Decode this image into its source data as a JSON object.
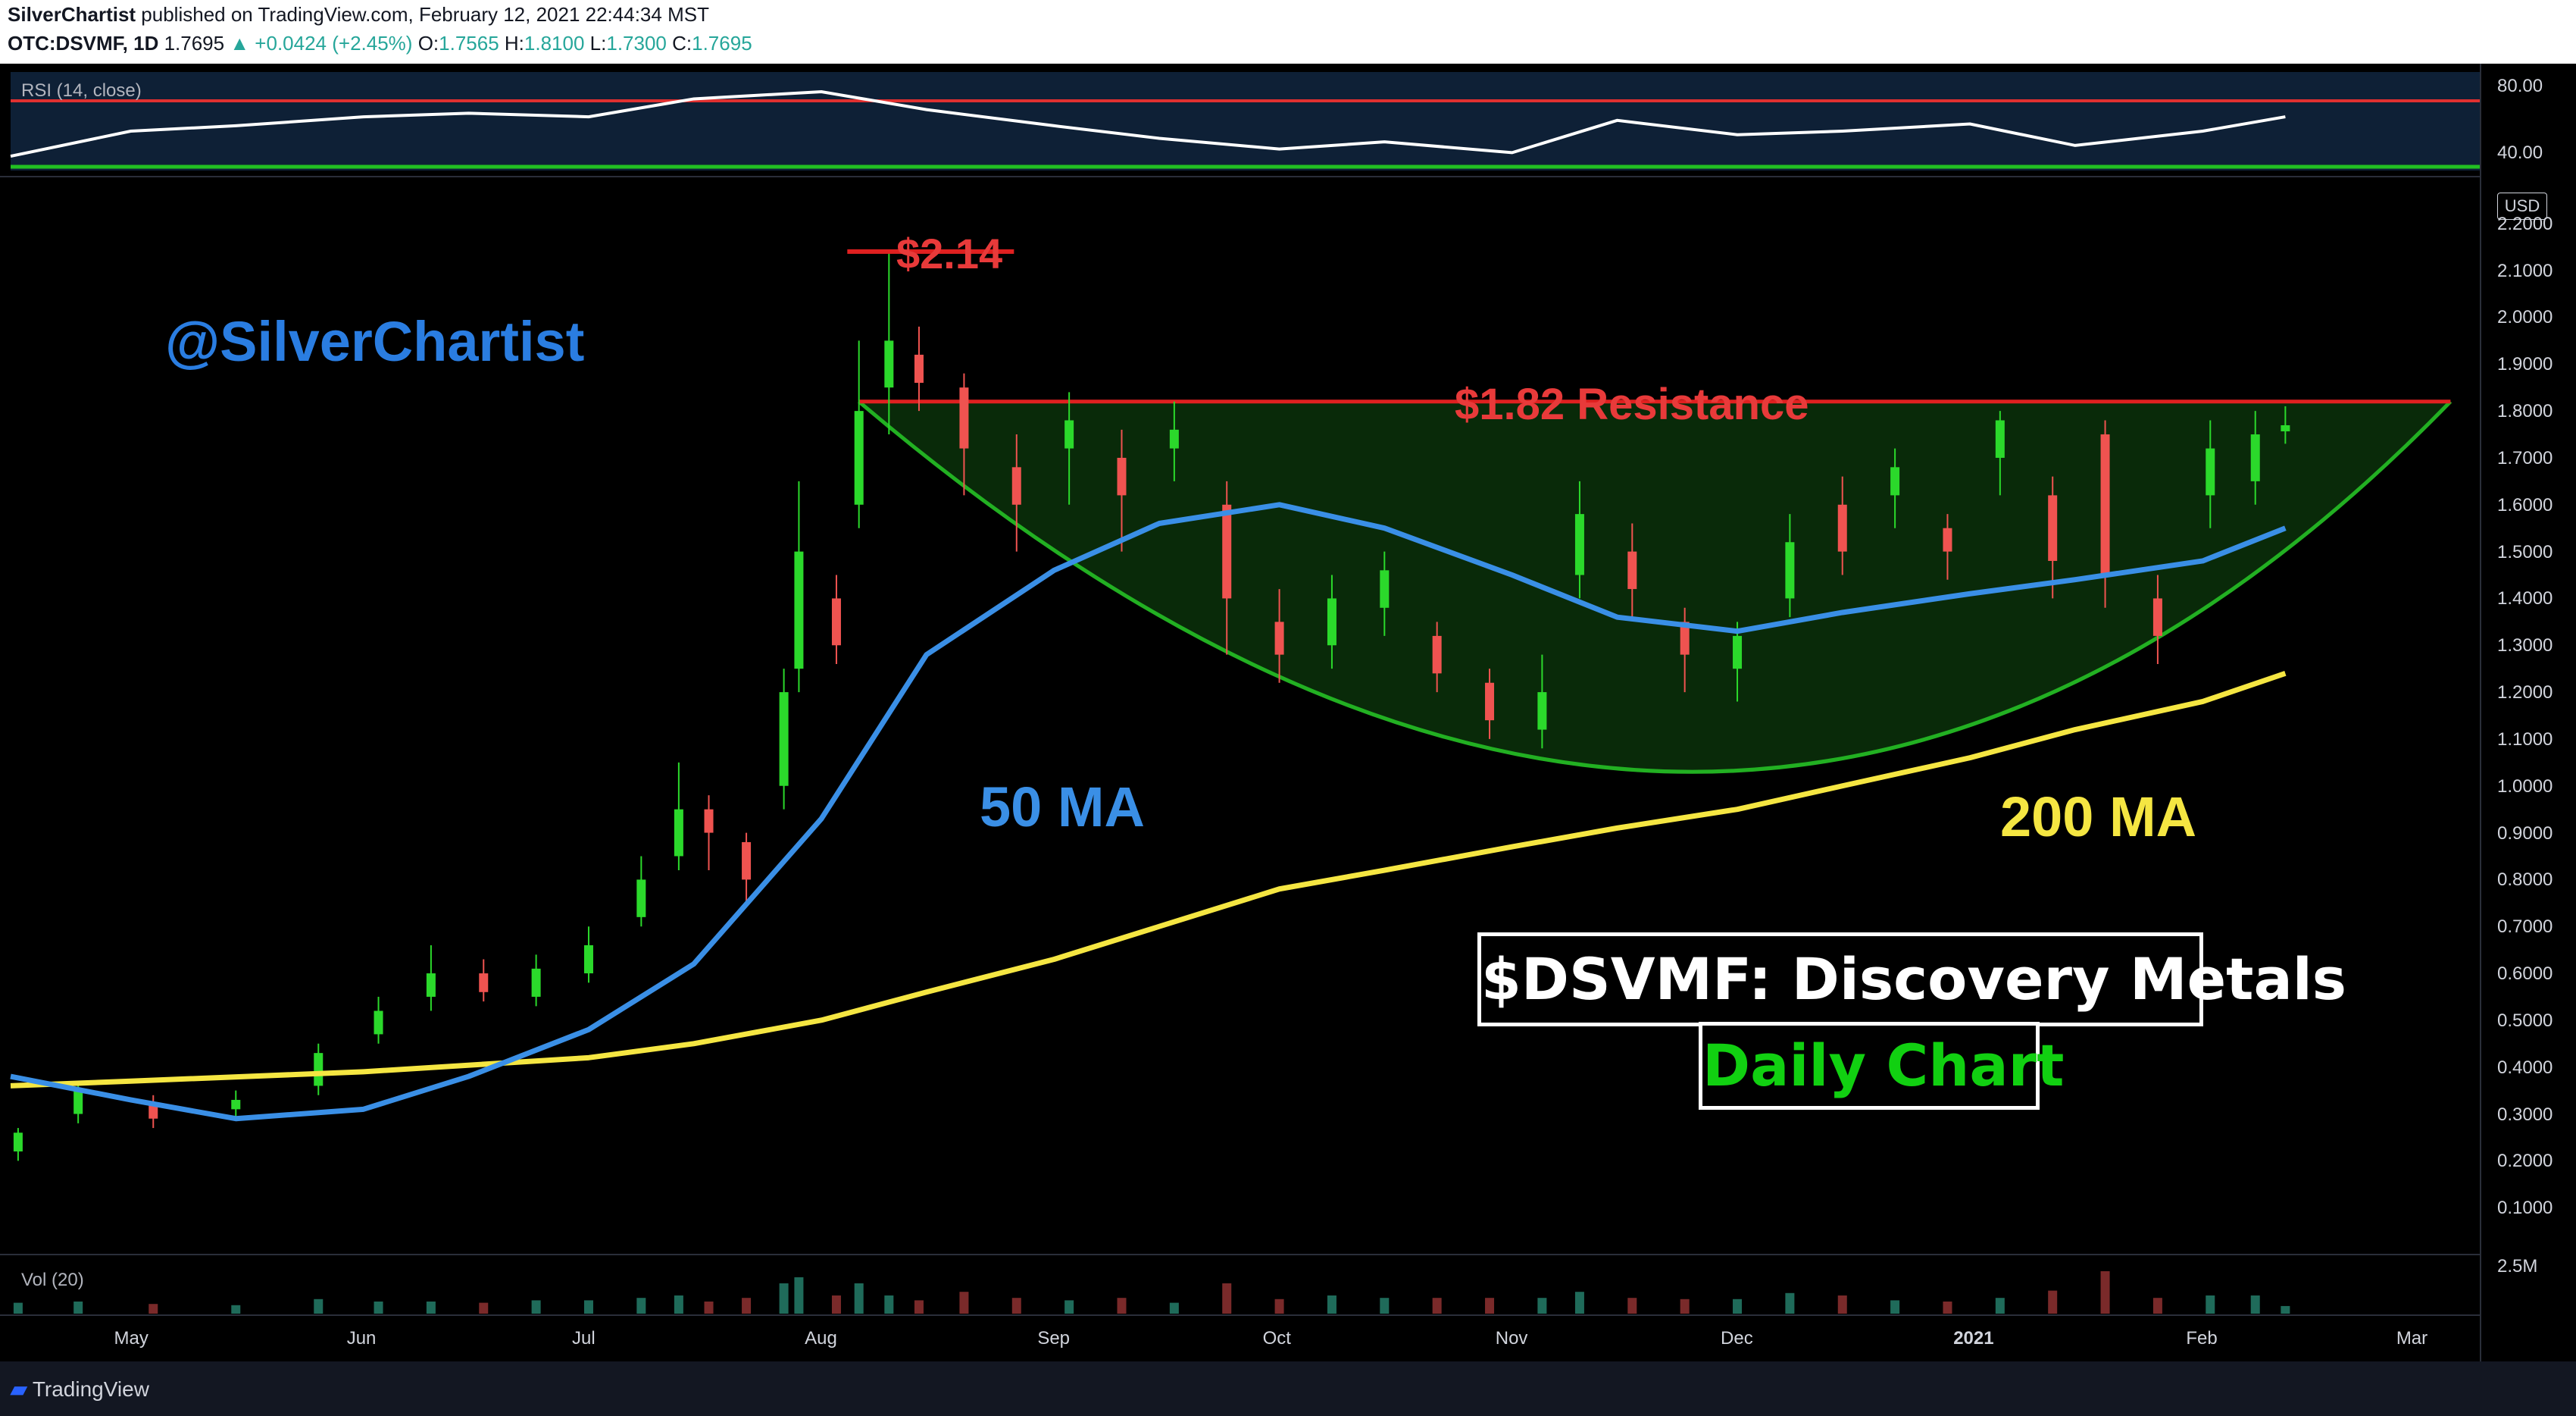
{
  "header": {
    "author": "SilverChartist",
    "published": " published on TradingView.com, February 12, 2021 22:44:34 MST",
    "symbol": "OTC:DSVMF, 1D",
    "last": "1.7695",
    "change": "▲ +0.0424 (+2.45%)",
    "o_label": "O:",
    "o_val": "1.7565",
    "h_label": "H:",
    "h_val": "1.8100",
    "l_label": "L:",
    "l_val": "1.7300",
    "c_label": "C:",
    "c_val": "1.7695"
  },
  "rsi_label": "RSI (14, close)",
  "rsi_ticks": [
    "80.00",
    "40.00"
  ],
  "vol_label": "Vol (20)",
  "vol_tick": "2.5M",
  "currency": "USD",
  "footer": {
    "brand": "TradingView"
  },
  "annotations": {
    "handle": "@SilverChartist",
    "peak": "$2.14",
    "resistance": "$1.82 Resistance",
    "ma50": "50 MA",
    "ma200": "200 MA",
    "title": "$DSVMF: Discovery Metals",
    "subtitle": "Daily Chart"
  },
  "colors": {
    "up": "#26a69a",
    "down": "#ef5350",
    "green_candle": "#2bd92b",
    "ma50": "#3a8fe6",
    "ma200": "#f5e642",
    "resistance": "#e02020",
    "cup": "#22b022",
    "handle_text": "#2a7de1"
  },
  "chart_data": {
    "type": "line",
    "ylim": [
      0.0,
      2.3
    ],
    "y_ticks": [
      "2.2000",
      "2.1000",
      "2.0000",
      "1.9000",
      "1.8000",
      "1.7000",
      "1.6000",
      "1.5000",
      "1.4000",
      "1.3000",
      "1.2000",
      "1.1000",
      "1.0000",
      "0.9000",
      "0.8000",
      "0.7000",
      "0.6000",
      "0.5000",
      "0.4000",
      "0.3000",
      "0.2000",
      "0.1000"
    ],
    "x_ticks": [
      "May",
      "Jun",
      "Jul",
      "Aug",
      "Sep",
      "Oct",
      "Nov",
      "Dec",
      "2021",
      "Feb",
      "Mar"
    ],
    "x_range": [
      "2020-04-15",
      "2021-03-10"
    ],
    "x_tick_dates": [
      "2020-05-01",
      "2020-06-01",
      "2020-07-01",
      "2020-08-01",
      "2020-09-01",
      "2020-10-01",
      "2020-11-01",
      "2020-12-01",
      "2021-01-01",
      "2021-02-01",
      "2021-03-01"
    ],
    "series": [
      {
        "name": "50 MA",
        "x": [
          "2020-04-15",
          "2020-05-01",
          "2020-05-15",
          "2020-06-01",
          "2020-06-15",
          "2020-07-01",
          "2020-07-15",
          "2020-08-01",
          "2020-08-15",
          "2020-09-01",
          "2020-09-15",
          "2020-10-01",
          "2020-10-15",
          "2020-11-01",
          "2020-11-15",
          "2020-12-01",
          "2020-12-15",
          "2021-01-01",
          "2021-01-15",
          "2021-02-01",
          "2021-02-12"
        ],
        "values": [
          0.38,
          0.33,
          0.29,
          0.31,
          0.38,
          0.48,
          0.62,
          0.93,
          1.28,
          1.46,
          1.56,
          1.6,
          1.55,
          1.45,
          1.36,
          1.33,
          1.37,
          1.41,
          1.44,
          1.48,
          1.55
        ]
      },
      {
        "name": "200 MA",
        "x": [
          "2020-04-15",
          "2020-05-01",
          "2020-06-01",
          "2020-07-01",
          "2020-07-15",
          "2020-08-01",
          "2020-08-15",
          "2020-09-01",
          "2020-09-15",
          "2020-10-01",
          "2020-10-15",
          "2020-11-01",
          "2020-11-15",
          "2020-12-01",
          "2020-12-15",
          "2021-01-01",
          "2021-01-15",
          "2021-02-01",
          "2021-02-12"
        ],
        "values": [
          0.36,
          0.37,
          0.39,
          0.42,
          0.45,
          0.5,
          0.56,
          0.63,
          0.7,
          0.78,
          0.82,
          0.87,
          0.91,
          0.95,
          1.0,
          1.06,
          1.12,
          1.18,
          1.24
        ]
      },
      {
        "name": "RSI",
        "x": [
          "2020-04-15",
          "2020-05-01",
          "2020-05-15",
          "2020-06-01",
          "2020-06-15",
          "2020-07-01",
          "2020-07-15",
          "2020-08-01",
          "2020-08-15",
          "2020-09-01",
          "2020-09-15",
          "2020-10-01",
          "2020-10-15",
          "2020-11-01",
          "2020-11-15",
          "2020-12-01",
          "2020-12-15",
          "2021-01-01",
          "2021-01-15",
          "2021-02-01",
          "2021-02-12"
        ],
        "values": [
          38,
          52,
          55,
          60,
          62,
          60,
          70,
          74,
          64,
          55,
          48,
          42,
          46,
          40,
          58,
          50,
          52,
          56,
          44,
          52,
          60
        ]
      }
    ],
    "candles": [
      {
        "d": "2020-04-16",
        "o": 0.22,
        "c": 0.26,
        "h": 0.27,
        "l": 0.2
      },
      {
        "d": "2020-04-24",
        "o": 0.3,
        "c": 0.35,
        "h": 0.37,
        "l": 0.28
      },
      {
        "d": "2020-05-04",
        "o": 0.32,
        "c": 0.29,
        "h": 0.34,
        "l": 0.27
      },
      {
        "d": "2020-05-15",
        "o": 0.31,
        "c": 0.33,
        "h": 0.35,
        "l": 0.29
      },
      {
        "d": "2020-05-26",
        "o": 0.36,
        "c": 0.43,
        "h": 0.45,
        "l": 0.34
      },
      {
        "d": "2020-06-03",
        "o": 0.47,
        "c": 0.52,
        "h": 0.55,
        "l": 0.45
      },
      {
        "d": "2020-06-10",
        "o": 0.55,
        "c": 0.6,
        "h": 0.66,
        "l": 0.52
      },
      {
        "d": "2020-06-17",
        "o": 0.6,
        "c": 0.56,
        "h": 0.63,
        "l": 0.54
      },
      {
        "d": "2020-06-24",
        "o": 0.55,
        "c": 0.61,
        "h": 0.64,
        "l": 0.53
      },
      {
        "d": "2020-07-01",
        "o": 0.6,
        "c": 0.66,
        "h": 0.7,
        "l": 0.58
      },
      {
        "d": "2020-07-08",
        "o": 0.72,
        "c": 0.8,
        "h": 0.85,
        "l": 0.7
      },
      {
        "d": "2020-07-13",
        "o": 0.85,
        "c": 0.95,
        "h": 1.05,
        "l": 0.82
      },
      {
        "d": "2020-07-17",
        "o": 0.95,
        "c": 0.9,
        "h": 0.98,
        "l": 0.82
      },
      {
        "d": "2020-07-22",
        "o": 0.88,
        "c": 0.8,
        "h": 0.9,
        "l": 0.75
      },
      {
        "d": "2020-07-27",
        "o": 1.0,
        "c": 1.2,
        "h": 1.25,
        "l": 0.95
      },
      {
        "d": "2020-07-29",
        "o": 1.25,
        "c": 1.5,
        "h": 1.65,
        "l": 1.2
      },
      {
        "d": "2020-08-03",
        "o": 1.4,
        "c": 1.3,
        "h": 1.45,
        "l": 1.26
      },
      {
        "d": "2020-08-06",
        "o": 1.6,
        "c": 1.8,
        "h": 1.95,
        "l": 1.55
      },
      {
        "d": "2020-08-10",
        "o": 1.85,
        "c": 1.95,
        "h": 2.14,
        "l": 1.75
      },
      {
        "d": "2020-08-14",
        "o": 1.92,
        "c": 1.86,
        "h": 1.98,
        "l": 1.8
      },
      {
        "d": "2020-08-20",
        "o": 1.85,
        "c": 1.72,
        "h": 1.88,
        "l": 1.62
      },
      {
        "d": "2020-08-27",
        "o": 1.68,
        "c": 1.6,
        "h": 1.75,
        "l": 1.5
      },
      {
        "d": "2020-09-03",
        "o": 1.72,
        "c": 1.78,
        "h": 1.84,
        "l": 1.6
      },
      {
        "d": "2020-09-10",
        "o": 1.7,
        "c": 1.62,
        "h": 1.76,
        "l": 1.5
      },
      {
        "d": "2020-09-17",
        "o": 1.72,
        "c": 1.76,
        "h": 1.82,
        "l": 1.65
      },
      {
        "d": "2020-09-24",
        "o": 1.6,
        "c": 1.4,
        "h": 1.65,
        "l": 1.28
      },
      {
        "d": "2020-10-01",
        "o": 1.35,
        "c": 1.28,
        "h": 1.42,
        "l": 1.22
      },
      {
        "d": "2020-10-08",
        "o": 1.3,
        "c": 1.4,
        "h": 1.45,
        "l": 1.25
      },
      {
        "d": "2020-10-15",
        "o": 1.38,
        "c": 1.46,
        "h": 1.5,
        "l": 1.32
      },
      {
        "d": "2020-10-22",
        "o": 1.32,
        "c": 1.24,
        "h": 1.35,
        "l": 1.2
      },
      {
        "d": "2020-10-29",
        "o": 1.22,
        "c": 1.14,
        "h": 1.25,
        "l": 1.1
      },
      {
        "d": "2020-11-05",
        "o": 1.12,
        "c": 1.2,
        "h": 1.28,
        "l": 1.08
      },
      {
        "d": "2020-11-10",
        "o": 1.45,
        "c": 1.58,
        "h": 1.65,
        "l": 1.4
      },
      {
        "d": "2020-11-17",
        "o": 1.5,
        "c": 1.42,
        "h": 1.56,
        "l": 1.36
      },
      {
        "d": "2020-11-24",
        "o": 1.35,
        "c": 1.28,
        "h": 1.38,
        "l": 1.2
      },
      {
        "d": "2020-12-01",
        "o": 1.25,
        "c": 1.32,
        "h": 1.35,
        "l": 1.18
      },
      {
        "d": "2020-12-08",
        "o": 1.4,
        "c": 1.52,
        "h": 1.58,
        "l": 1.36
      },
      {
        "d": "2020-12-15",
        "o": 1.6,
        "c": 1.5,
        "h": 1.66,
        "l": 1.45
      },
      {
        "d": "2020-12-22",
        "o": 1.62,
        "c": 1.68,
        "h": 1.72,
        "l": 1.55
      },
      {
        "d": "2020-12-29",
        "o": 1.55,
        "c": 1.5,
        "h": 1.58,
        "l": 1.44
      },
      {
        "d": "2021-01-05",
        "o": 1.7,
        "c": 1.78,
        "h": 1.8,
        "l": 1.62
      },
      {
        "d": "2021-01-12",
        "o": 1.62,
        "c": 1.48,
        "h": 1.66,
        "l": 1.4
      },
      {
        "d": "2021-01-19",
        "o": 1.75,
        "c": 1.45,
        "h": 1.78,
        "l": 1.38
      },
      {
        "d": "2021-01-26",
        "o": 1.4,
        "c": 1.32,
        "h": 1.45,
        "l": 1.26
      },
      {
        "d": "2021-02-02",
        "o": 1.62,
        "c": 1.72,
        "h": 1.78,
        "l": 1.55
      },
      {
        "d": "2021-02-08",
        "o": 1.65,
        "c": 1.75,
        "h": 1.8,
        "l": 1.6
      },
      {
        "d": "2021-02-12",
        "o": 1.7565,
        "c": 1.7695,
        "h": 1.81,
        "l": 1.73
      }
    ],
    "resistance": 1.82,
    "peak": 2.14
  }
}
